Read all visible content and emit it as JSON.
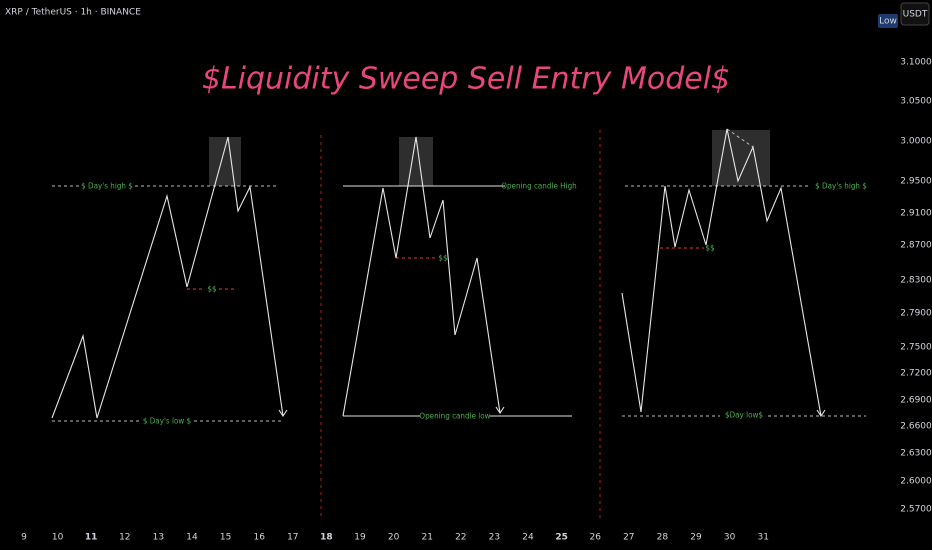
{
  "header": {
    "symbol": "XRP / TetherUS · 1h · BINANCE",
    "low_badge": "Low",
    "quote": "USDT"
  },
  "title": "$Liquidity Sweep Sell Entry Model$",
  "price_axis": [
    "3.1000",
    "3.0500",
    "3.0000",
    "2.9500",
    "2.9100",
    "2.8700",
    "2.8300",
    "2.7900",
    "2.7500",
    "2.7200",
    "2.6900",
    "2.6600",
    "2.6300",
    "2.6000",
    "2.5700"
  ],
  "time_axis": [
    "9",
    "10",
    "11",
    "12",
    "13",
    "14",
    "15",
    "16",
    "17",
    "18",
    "19",
    "20",
    "21",
    "22",
    "23",
    "24",
    "25",
    "26",
    "27",
    "28",
    "29",
    "30",
    "31"
  ],
  "annotations": {
    "p1_high": "$ Day's high $",
    "p1_ss": "$$",
    "p1_low": "$ Day's low $",
    "p2_high": "Opening candle High",
    "p2_ss": "$$",
    "p2_low": "Opening candle low",
    "p3_ss": "$$",
    "p3_high": "$ Day's high $",
    "p3_low": "$Day low$"
  }
}
